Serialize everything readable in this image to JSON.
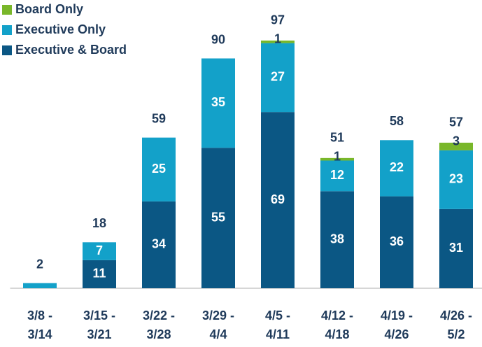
{
  "chart_data": {
    "type": "stacked_bar",
    "categories": [
      [
        "3/8 -",
        "3/14"
      ],
      [
        "3/15 -",
        "3/21"
      ],
      [
        "3/22 -",
        "3/28"
      ],
      [
        "3/29 -",
        "4/4"
      ],
      [
        "4/5 -",
        "4/11"
      ],
      [
        "4/12 -",
        "4/18"
      ],
      [
        "4/19 -",
        "4/26"
      ],
      [
        "4/26 -",
        "5/2"
      ]
    ],
    "series": [
      {
        "name": "Executive & Board",
        "color": "#0b5784",
        "values": [
          null,
          11,
          34,
          55,
          69,
          38,
          36,
          31
        ]
      },
      {
        "name": "Executive Only",
        "color": "#13a1c9",
        "values": [
          2,
          7,
          25,
          35,
          27,
          12,
          22,
          23
        ]
      },
      {
        "name": "Board Only",
        "color": "#79b72a",
        "values": [
          null,
          null,
          null,
          null,
          1,
          1,
          null,
          3
        ]
      }
    ],
    "totals": [
      2,
      18,
      59,
      90,
      97,
      51,
      58,
      57
    ],
    "ylim": [
      0,
      100
    ],
    "legend": "top-left"
  }
}
